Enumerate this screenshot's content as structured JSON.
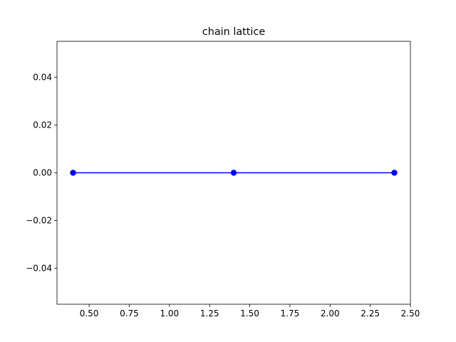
{
  "chart_data": {
    "type": "line",
    "title": "chain lattice",
    "xlabel": "",
    "ylabel": "",
    "xlim": [
      0.3,
      2.5
    ],
    "ylim": [
      -0.055,
      0.055
    ],
    "xticks": [
      0.5,
      0.75,
      1.0,
      1.25,
      1.5,
      1.75,
      2.0,
      2.25,
      2.5
    ],
    "xtick_labels": [
      "0.50",
      "0.75",
      "1.00",
      "1.25",
      "1.50",
      "1.75",
      "2.00",
      "2.25",
      "2.50"
    ],
    "yticks": [
      -0.04,
      -0.02,
      0.0,
      0.02,
      0.04
    ],
    "ytick_labels": [
      "−0.04",
      "−0.02",
      "0.00",
      "0.02",
      "0.04"
    ],
    "grid": false,
    "series": [
      {
        "x": [
          0.4,
          1.4,
          2.4
        ],
        "y": [
          0.0,
          0.0,
          0.0
        ],
        "color": "#0000ff",
        "marker": "circle"
      }
    ]
  }
}
